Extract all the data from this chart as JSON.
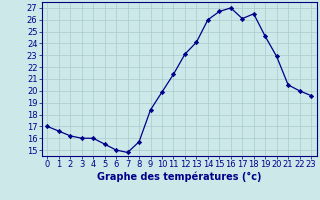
{
  "hours": [
    0,
    1,
    2,
    3,
    4,
    5,
    6,
    7,
    8,
    9,
    10,
    11,
    12,
    13,
    14,
    15,
    16,
    17,
    18,
    19,
    20,
    21,
    22,
    23
  ],
  "temps": [
    17.0,
    16.6,
    16.2,
    16.0,
    16.0,
    15.5,
    15.0,
    14.8,
    15.7,
    18.4,
    19.9,
    21.4,
    23.1,
    24.1,
    26.0,
    26.7,
    27.0,
    26.1,
    26.5,
    24.6,
    22.9,
    20.5,
    20.0,
    19.6
  ],
  "line_color": "#00008b",
  "marker": "D",
  "marker_size": 2.2,
  "bg_color": "#cce8e8",
  "grid_color": "#aacccc",
  "xlabel": "Graphe des températures (°c)",
  "xlabel_fontsize": 7,
  "tick_fontsize": 6,
  "ylim": [
    14.5,
    27.5
  ],
  "yticks": [
    15,
    16,
    17,
    18,
    19,
    20,
    21,
    22,
    23,
    24,
    25,
    26,
    27
  ],
  "xticks": [
    0,
    1,
    2,
    3,
    4,
    5,
    6,
    7,
    8,
    9,
    10,
    11,
    12,
    13,
    14,
    15,
    16,
    17,
    18,
    19,
    20,
    21,
    22,
    23
  ],
  "spine_color": "#000080"
}
